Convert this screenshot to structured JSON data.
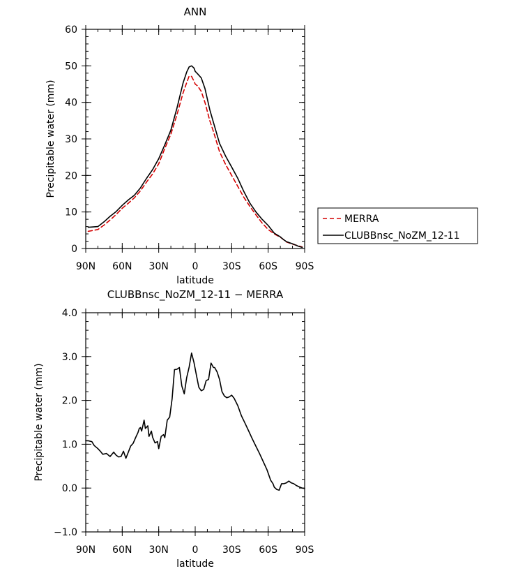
{
  "chart_data": [
    {
      "type": "line",
      "title": "ANN",
      "xlabel": "latitude",
      "ylabel": "Precipitable water (mm)",
      "xlim": [
        90,
        -90
      ],
      "ylim": [
        0,
        60
      ],
      "x_ticks": [
        90,
        60,
        30,
        0,
        -30,
        -60,
        -90
      ],
      "x_tick_labels": [
        "90N",
        "60N",
        "30N",
        "0",
        "30S",
        "60S",
        "90S"
      ],
      "y_ticks": [
        0,
        10,
        20,
        30,
        40,
        50,
        60
      ],
      "y_tick_labels": [
        "0",
        "10",
        "20",
        "30",
        "40",
        "50",
        "60"
      ],
      "legend_position": "right",
      "grid": false,
      "series": [
        {
          "name": "MERRA",
          "color": "#d40000",
          "dash": "dashed",
          "x": [
            88,
            80,
            75,
            70,
            65,
            60,
            55,
            50,
            45,
            40,
            35,
            30,
            25,
            20,
            15,
            10,
            7,
            5,
            3,
            1,
            0,
            -2,
            -5,
            -8,
            -12,
            -15,
            -20,
            -25,
            -30,
            -35,
            -40,
            -45,
            -50,
            -55,
            -60,
            -65,
            -70,
            -72,
            -75,
            -80,
            -85,
            -88
          ],
          "y": [
            4.7,
            5.2,
            6.4,
            7.8,
            9.3,
            11.0,
            12.4,
            13.9,
            15.8,
            18.2,
            20.4,
            23.2,
            27.4,
            31.3,
            36.6,
            42.6,
            45.4,
            47.2,
            47.1,
            45.8,
            45.0,
            44.5,
            43.0,
            40.0,
            35.0,
            32.0,
            26.5,
            23.0,
            20.0,
            17.0,
            14.0,
            11.5,
            9.2,
            7.0,
            5.2,
            4.0,
            3.1,
            2.6,
            1.8,
            1.2,
            0.7,
            0.4
          ]
        },
        {
          "name": "CLUBBnsc_NoZM_12-11",
          "color": "#000000",
          "dash": "solid",
          "x": [
            88,
            80,
            75,
            70,
            65,
            60,
            55,
            50,
            45,
            40,
            35,
            30,
            25,
            20,
            15,
            10,
            7,
            5,
            3,
            1,
            0,
            -2,
            -5,
            -8,
            -12,
            -15,
            -20,
            -25,
            -30,
            -35,
            -40,
            -45,
            -50,
            -55,
            -60,
            -65,
            -70,
            -72,
            -75,
            -80,
            -85,
            -88
          ],
          "y": [
            5.8,
            6.0,
            7.3,
            8.8,
            10.1,
            11.8,
            13.3,
            14.6,
            16.6,
            19.2,
            21.6,
            24.6,
            28.4,
            32.4,
            38.4,
            45.3,
            48.3,
            49.7,
            50.0,
            49.4,
            48.5,
            47.8,
            46.7,
            43.8,
            38.0,
            34.5,
            28.8,
            25.3,
            22.3,
            19.2,
            15.6,
            12.4,
            10.0,
            8.0,
            6.3,
            4.2,
            3.2,
            2.6,
            1.9,
            1.3,
            0.6,
            0.3
          ]
        }
      ]
    },
    {
      "type": "line",
      "title": "CLUBBnsc_NoZM_12-11 − MERRA",
      "xlabel": "latitude",
      "ylabel": "Precipitable water (mm)",
      "xlim": [
        90,
        -90
      ],
      "ylim": [
        -1.0,
        4.0
      ],
      "x_ticks": [
        90,
        60,
        30,
        0,
        -30,
        -60,
        -90
      ],
      "x_tick_labels": [
        "90N",
        "60N",
        "30N",
        "0",
        "30S",
        "60S",
        "90S"
      ],
      "y_ticks": [
        -1.0,
        0.0,
        1.0,
        2.0,
        3.0,
        4.0
      ],
      "y_tick_labels": [
        "−1.0",
        "0.0",
        "1.0",
        "2.0",
        "3.0",
        "4.0"
      ],
      "grid": false,
      "series": [
        {
          "color": "#000000",
          "dash": "solid",
          "x": [
            90,
            88,
            85,
            83,
            80,
            78,
            76,
            73,
            70,
            67,
            65,
            63,
            61,
            59,
            57,
            55,
            53,
            51,
            49,
            47,
            46,
            45,
            44,
            42,
            41,
            39,
            38,
            36,
            35,
            33,
            31,
            30,
            28,
            26,
            25,
            23,
            21,
            19,
            17,
            15,
            13,
            11,
            9,
            7,
            5,
            3,
            1,
            -1,
            -3,
            -5,
            -7,
            -9,
            -11,
            -13,
            -15,
            -16,
            -18,
            -20,
            -22,
            -24,
            -26,
            -28,
            -30,
            -32,
            -35,
            -38,
            -41,
            -44,
            -47,
            -50,
            -53,
            -56,
            -59,
            -62,
            -64,
            -65,
            -67,
            -69,
            -71,
            -73,
            -75,
            -77,
            -79,
            -81,
            -83,
            -86,
            -88,
            -90
          ],
          "y": [
            1.08,
            1.08,
            1.06,
            0.97,
            0.9,
            0.84,
            0.77,
            0.79,
            0.72,
            0.82,
            0.75,
            0.71,
            0.72,
            0.84,
            0.68,
            0.82,
            0.96,
            1.02,
            1.15,
            1.27,
            1.36,
            1.38,
            1.3,
            1.55,
            1.36,
            1.42,
            1.18,
            1.3,
            1.16,
            1.03,
            1.06,
            0.9,
            1.18,
            1.22,
            1.15,
            1.55,
            1.62,
            2.04,
            2.7,
            2.71,
            2.75,
            2.33,
            2.15,
            2.52,
            2.76,
            3.08,
            2.86,
            2.58,
            2.3,
            2.22,
            2.25,
            2.45,
            2.48,
            2.85,
            2.75,
            2.75,
            2.65,
            2.48,
            2.2,
            2.1,
            2.06,
            2.08,
            2.12,
            2.05,
            1.88,
            1.65,
            1.48,
            1.3,
            1.12,
            0.95,
            0.78,
            0.6,
            0.42,
            0.18,
            0.1,
            0.02,
            -0.03,
            -0.05,
            0.1,
            0.1,
            0.12,
            0.16,
            0.12,
            0.1,
            0.06,
            0.02,
            0.0,
            -0.01
          ]
        }
      ]
    }
  ]
}
